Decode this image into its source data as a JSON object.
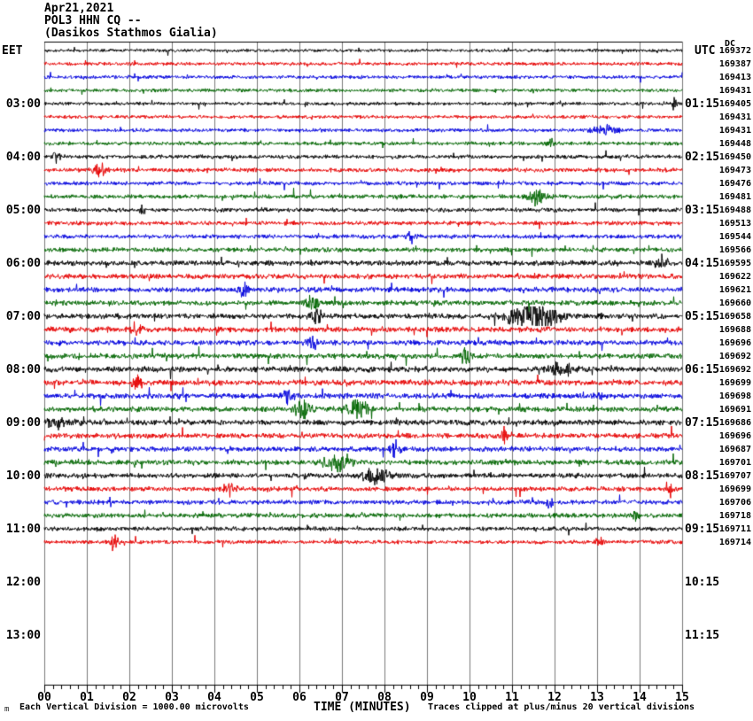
{
  "header": {
    "date_line": "Apr21,2021",
    "station_line": "POL3 HHN CQ --",
    "location_line": "(Dasikos Stathmos Gialia)"
  },
  "axes": {
    "left_label": "EET",
    "right_label": "UTC",
    "dc_label": "DC",
    "x_axis_title": "TIME (MINUTES)",
    "footer_left": "Each Vertical Division = 1000.00 microvolts",
    "footer_right": "Traces clipped at plus/minus 20 vertical divisions",
    "watermark": "m"
  },
  "chart_data": {
    "type": "line",
    "title": "Apr21,2021 POL3 HHN CQ -- (Dasikos Stathmos Gialia)",
    "x_axis": {
      "title": "TIME (MINUTES)",
      "range": [
        0,
        15
      ],
      "ticks": [
        "00",
        "01",
        "02",
        "03",
        "04",
        "05",
        "06",
        "07",
        "08",
        "09",
        "10",
        "11",
        "12",
        "13",
        "14",
        "15"
      ],
      "minor_per_major": 5
    },
    "minutes_per_row": 15,
    "grid": true,
    "colors": {
      "black": "#000000",
      "red": "#e60000",
      "blue": "#0000dd",
      "green": "#006600"
    },
    "grid_color": "#7a7a7a",
    "axis_color": "#000000",
    "hour_labels": [
      {
        "row": 5,
        "eet": "03:00",
        "utc": "01:15"
      },
      {
        "row": 9,
        "eet": "04:00",
        "utc": "02:15"
      },
      {
        "row": 13,
        "eet": "05:00",
        "utc": "03:15"
      },
      {
        "row": 17,
        "eet": "06:00",
        "utc": "04:15"
      },
      {
        "row": 21,
        "eet": "07:00",
        "utc": "05:15"
      },
      {
        "row": 25,
        "eet": "08:00",
        "utc": "06:15"
      },
      {
        "row": 29,
        "eet": "09:00",
        "utc": "07:15"
      },
      {
        "row": 33,
        "eet": "10:00",
        "utc": "08:15"
      },
      {
        "row": 37,
        "eet": "11:00",
        "utc": "09:15"
      },
      {
        "row": 41,
        "eet": "12:00",
        "utc": "10:15"
      },
      {
        "row": 45,
        "eet": "13:00",
        "utc": "11:15"
      }
    ],
    "rows": [
      {
        "color": "black",
        "dc": "169372"
      },
      {
        "color": "red",
        "dc": "169387"
      },
      {
        "color": "blue",
        "dc": "169413"
      },
      {
        "color": "green",
        "dc": "169431"
      },
      {
        "color": "black",
        "dc": "169405"
      },
      {
        "color": "red",
        "dc": "169431"
      },
      {
        "color": "blue",
        "dc": "169431"
      },
      {
        "color": "green",
        "dc": "169448"
      },
      {
        "color": "black",
        "dc": "169450"
      },
      {
        "color": "red",
        "dc": "169473"
      },
      {
        "color": "blue",
        "dc": "169476"
      },
      {
        "color": "green",
        "dc": "169481"
      },
      {
        "color": "black",
        "dc": "169488"
      },
      {
        "color": "red",
        "dc": "169513"
      },
      {
        "color": "blue",
        "dc": "169544"
      },
      {
        "color": "green",
        "dc": "169566"
      },
      {
        "color": "black",
        "dc": "169595"
      },
      {
        "color": "red",
        "dc": "169622"
      },
      {
        "color": "blue",
        "dc": "169621"
      },
      {
        "color": "green",
        "dc": "169660"
      },
      {
        "color": "black",
        "dc": "169658"
      },
      {
        "color": "red",
        "dc": "169688"
      },
      {
        "color": "blue",
        "dc": "169696"
      },
      {
        "color": "green",
        "dc": "169692"
      },
      {
        "color": "black",
        "dc": "169692"
      },
      {
        "color": "red",
        "dc": "169699"
      },
      {
        "color": "blue",
        "dc": "169698"
      },
      {
        "color": "green",
        "dc": "169691"
      },
      {
        "color": "black",
        "dc": "169686"
      },
      {
        "color": "red",
        "dc": "169696"
      },
      {
        "color": "blue",
        "dc": "169687"
      },
      {
        "color": "green",
        "dc": "169701"
      },
      {
        "color": "black",
        "dc": "169707"
      },
      {
        "color": "red",
        "dc": "169699"
      },
      {
        "color": "blue",
        "dc": "169706"
      },
      {
        "color": "green",
        "dc": "169718"
      },
      {
        "color": "black",
        "dc": "169711"
      },
      {
        "color": "red",
        "dc": "169714"
      }
    ],
    "noise_sigma": [
      1.3,
      1.4,
      1.4,
      1.4,
      1.4,
      1.4,
      1.5,
      1.5,
      1.6,
      1.7,
      1.6,
      1.7,
      1.7,
      1.7,
      1.7,
      1.8,
      2.1,
      2.1,
      2.1,
      2.1,
      2.2,
      2.3,
      2.2,
      2.2,
      2.3,
      2.3,
      2.2,
      2.2,
      2.2,
      2.1,
      2.1,
      2.1,
      2.0,
      1.9,
      1.9,
      1.9,
      1.7,
      1.6
    ],
    "events": [
      {
        "row": 2,
        "m": 2.1,
        "w": 0.06,
        "a": 4
      },
      {
        "row": 5,
        "m": 14.8,
        "w": 0.06,
        "a": 5
      },
      {
        "row": 7,
        "m": 13.2,
        "w": 0.25,
        "a": 4
      },
      {
        "row": 8,
        "m": 11.9,
        "w": 0.06,
        "a": 4
      },
      {
        "row": 9,
        "m": 0.3,
        "w": 0.08,
        "a": 5
      },
      {
        "row": 10,
        "m": 1.3,
        "w": 0.15,
        "a": 6
      },
      {
        "row": 12,
        "m": 11.6,
        "w": 0.18,
        "a": 8
      },
      {
        "row": 13,
        "m": 2.3,
        "w": 0.07,
        "a": 5
      },
      {
        "row": 15,
        "m": 8.6,
        "w": 0.1,
        "a": 4
      },
      {
        "row": 17,
        "m": 14.5,
        "w": 0.15,
        "a": 6
      },
      {
        "row": 19,
        "m": 4.7,
        "w": 0.12,
        "a": 6
      },
      {
        "row": 20,
        "m": 6.3,
        "w": 0.15,
        "a": 5
      },
      {
        "row": 21,
        "m": 11.5,
        "w": 0.55,
        "a": 11
      },
      {
        "row": 21,
        "m": 6.4,
        "w": 0.12,
        "a": 5
      },
      {
        "row": 22,
        "m": 2.2,
        "w": 0.1,
        "a": 4
      },
      {
        "row": 23,
        "m": 6.3,
        "w": 0.12,
        "a": 5
      },
      {
        "row": 24,
        "m": 9.9,
        "w": 0.12,
        "a": 6
      },
      {
        "row": 25,
        "m": 12.2,
        "w": 0.3,
        "a": 5
      },
      {
        "row": 26,
        "m": 2.2,
        "w": 0.12,
        "a": 5
      },
      {
        "row": 27,
        "m": 5.7,
        "w": 0.15,
        "a": 5
      },
      {
        "row": 27,
        "m": 13.1,
        "w": 0.1,
        "a": 4
      },
      {
        "row": 28,
        "m": 6.1,
        "w": 0.18,
        "a": 8
      },
      {
        "row": 28,
        "m": 7.35,
        "w": 0.22,
        "a": 9
      },
      {
        "row": 29,
        "m": 0.3,
        "w": 0.3,
        "a": 4
      },
      {
        "row": 30,
        "m": 10.8,
        "w": 0.07,
        "a": 7
      },
      {
        "row": 31,
        "m": 8.25,
        "w": 0.12,
        "a": 5
      },
      {
        "row": 32,
        "m": 6.9,
        "w": 0.28,
        "a": 10
      },
      {
        "row": 33,
        "m": 7.8,
        "w": 0.3,
        "a": 6
      },
      {
        "row": 34,
        "m": 4.35,
        "w": 0.12,
        "a": 6
      },
      {
        "row": 34,
        "m": 14.7,
        "w": 0.06,
        "a": 4
      },
      {
        "row": 35,
        "m": 11.9,
        "w": 0.08,
        "a": 4
      },
      {
        "row": 36,
        "m": 13.9,
        "w": 0.08,
        "a": 4
      },
      {
        "row": 38,
        "m": 1.65,
        "w": 0.08,
        "a": 7
      },
      {
        "row": 38,
        "m": 4.2,
        "w": 0.06,
        "a": 3
      },
      {
        "row": 38,
        "m": 13.05,
        "w": 0.07,
        "a": 4
      }
    ],
    "clip_note": "Traces clipped at plus/minus 20 vertical divisions",
    "division_note": "Each Vertical Division = 1000.00 microvolts"
  }
}
